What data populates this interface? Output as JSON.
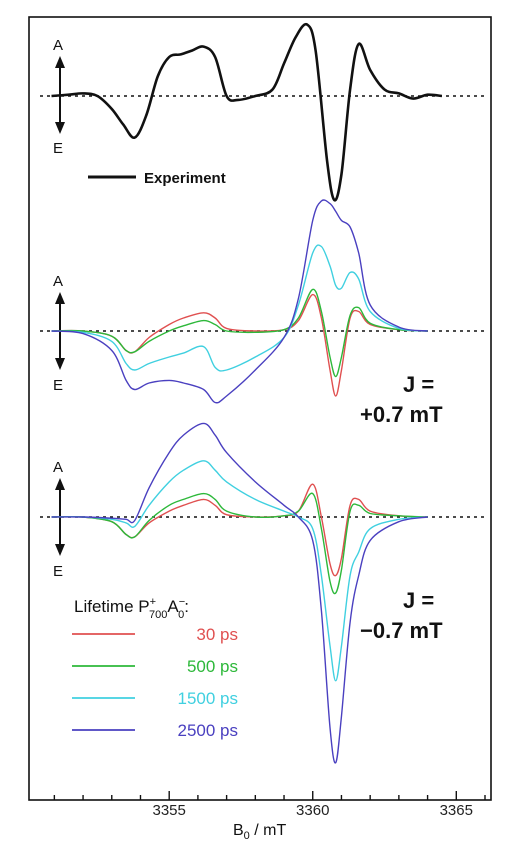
{
  "chart_data": {
    "type": "line",
    "xlabel_main": "B",
    "xlabel_sub": "0",
    "xlabel_unit": " / mT",
    "x_ticks": [
      3355,
      3360,
      3365
    ],
    "xlim": [
      3350.5,
      3366.0
    ],
    "axis_letters": {
      "absorption": "A",
      "emission": "E"
    },
    "colors": {
      "experiment": "#111111",
      "30 ps": "#e05050",
      "500 ps": "#2db83a",
      "1500 ps": "#40d0e0",
      "2500 ps": "#4a40c0"
    },
    "legend": {
      "title_main": "Lifetime P",
      "title_sub1": "700",
      "title_sup1": "+",
      "title_mid": "A",
      "title_sub2": "0",
      "title_sup2": "−",
      "title_end": ":",
      "entries": [
        {
          "label": "30 ps",
          "color": "#e05050"
        },
        {
          "label": "500 ps",
          "color": "#2db83a"
        },
        {
          "label": "1500 ps",
          "color": "#40d0e0"
        },
        {
          "label": "2500 ps",
          "color": "#4a40c0"
        }
      ]
    },
    "panels": [
      {
        "id": "experiment",
        "series": [
          {
            "name": "Experiment",
            "color": "#111111",
            "x": [
              3350.9,
              3351.5,
              3352.0,
              3352.5,
              3353.0,
              3353.4,
              3353.8,
              3354.2,
              3354.6,
              3355.0,
              3355.4,
              3355.8,
              3356.2,
              3356.6,
              3357.0,
              3357.4,
              3358.0,
              3358.6,
              3359.0,
              3359.4,
              3359.8,
              3360.1,
              3360.5,
              3360.75,
              3361.0,
              3361.3,
              3361.6,
              3362.0,
              3362.5,
              3363.0,
              3363.5,
              3364.0,
              3364.5
            ],
            "y": [
              0.0,
              0.01,
              0.02,
              0.0,
              -0.1,
              -0.22,
              -0.32,
              -0.15,
              0.15,
              0.3,
              0.32,
              0.35,
              0.38,
              0.3,
              0.0,
              -0.03,
              0.0,
              0.05,
              0.25,
              0.45,
              0.55,
              0.35,
              -0.5,
              -0.8,
              -0.6,
              0.05,
              0.4,
              0.2,
              0.05,
              0.02,
              -0.02,
              0.01,
              0.0
            ]
          }
        ]
      },
      {
        "id": "plus",
        "series": [
          {
            "name": "30 ps",
            "color": "#e05050",
            "x": [
              3350.9,
              3352.0,
              3353.0,
              3353.5,
              3353.8,
              3354.3,
              3355.0,
              3355.5,
              3356.2,
              3356.6,
              3357.0,
              3358.0,
              3359.0,
              3359.5,
              3360.0,
              3360.3,
              3360.6,
              3360.8,
              3361.0,
              3361.3,
              3361.6,
              3362.0,
              3363.0,
              3364.0
            ],
            "y": [
              0.0,
              0.0,
              -0.04,
              -0.15,
              -0.16,
              -0.05,
              0.05,
              0.1,
              0.14,
              0.1,
              0.02,
              0.0,
              0.01,
              0.08,
              0.28,
              0.1,
              -0.3,
              -0.5,
              -0.3,
              0.1,
              0.15,
              0.05,
              0.01,
              0.0
            ]
          },
          {
            "name": "500 ps",
            "color": "#2db83a",
            "x": [
              3350.9,
              3352.0,
              3353.0,
              3353.5,
              3353.8,
              3354.3,
              3355.0,
              3355.5,
              3356.2,
              3356.6,
              3357.0,
              3358.0,
              3359.0,
              3359.5,
              3360.0,
              3360.3,
              3360.6,
              3360.8,
              3361.0,
              3361.3,
              3361.6,
              3362.0,
              3363.0,
              3364.0
            ],
            "y": [
              0.0,
              0.0,
              -0.04,
              -0.15,
              -0.16,
              -0.08,
              0.0,
              0.04,
              0.08,
              0.05,
              0.0,
              -0.01,
              0.01,
              0.1,
              0.32,
              0.15,
              -0.2,
              -0.35,
              -0.2,
              0.12,
              0.18,
              0.06,
              0.01,
              0.0
            ]
          },
          {
            "name": "1500 ps",
            "color": "#40d0e0",
            "x": [
              3350.9,
              3352.0,
              3353.0,
              3353.5,
              3353.8,
              3354.3,
              3355.0,
              3355.5,
              3356.2,
              3356.6,
              3357.0,
              3358.0,
              3359.0,
              3359.5,
              3360.0,
              3360.3,
              3360.6,
              3360.8,
              3361.0,
              3361.3,
              3361.6,
              3362.0,
              3363.0,
              3364.0
            ],
            "y": [
              0.0,
              -0.01,
              -0.08,
              -0.25,
              -0.3,
              -0.25,
              -0.2,
              -0.17,
              -0.12,
              -0.28,
              -0.3,
              -0.2,
              -0.05,
              0.2,
              0.6,
              0.65,
              0.5,
              0.35,
              0.33,
              0.45,
              0.4,
              0.15,
              0.02,
              0.0
            ]
          },
          {
            "name": "2500 ps",
            "color": "#4a40c0",
            "x": [
              3350.9,
              3352.0,
              3353.0,
              3353.5,
              3353.8,
              3354.3,
              3355.0,
              3355.5,
              3356.2,
              3356.6,
              3357.0,
              3358.0,
              3359.0,
              3359.5,
              3360.0,
              3360.3,
              3360.6,
              3360.8,
              3361.0,
              3361.3,
              3361.6,
              3362.0,
              3363.0,
              3364.0
            ],
            "y": [
              0.0,
              -0.02,
              -0.15,
              -0.38,
              -0.45,
              -0.4,
              -0.38,
              -0.4,
              -0.45,
              -0.55,
              -0.5,
              -0.3,
              -0.05,
              0.25,
              0.85,
              1.0,
              0.98,
              0.92,
              0.85,
              0.8,
              0.6,
              0.2,
              0.03,
              0.0
            ]
          }
        ]
      },
      {
        "id": "minus",
        "series": [
          {
            "name": "30 ps",
            "color": "#e05050",
            "x": [
              3350.9,
              3352.0,
              3353.0,
              3353.5,
              3353.8,
              3354.3,
              3355.0,
              3355.5,
              3356.2,
              3356.6,
              3357.0,
              3358.0,
              3359.0,
              3359.5,
              3360.0,
              3360.3,
              3360.6,
              3360.8,
              3361.0,
              3361.3,
              3361.6,
              3362.0,
              3363.0,
              3364.0
            ],
            "y": [
              0.0,
              0.0,
              -0.04,
              -0.15,
              -0.17,
              -0.05,
              0.05,
              0.1,
              0.15,
              0.1,
              0.02,
              0.0,
              0.01,
              0.05,
              0.28,
              0.0,
              -0.4,
              -0.5,
              -0.35,
              0.1,
              0.15,
              0.05,
              0.01,
              0.0
            ]
          },
          {
            "name": "500 ps",
            "color": "#2db83a",
            "x": [
              3350.9,
              3352.0,
              3353.0,
              3353.5,
              3353.8,
              3354.3,
              3355.0,
              3355.5,
              3356.2,
              3356.6,
              3357.0,
              3358.0,
              3359.0,
              3359.5,
              3360.0,
              3360.3,
              3360.6,
              3360.8,
              3361.0,
              3361.3,
              3361.6,
              3362.0,
              3363.0,
              3364.0
            ],
            "y": [
              0.0,
              0.0,
              -0.04,
              -0.15,
              -0.17,
              -0.03,
              0.1,
              0.15,
              0.2,
              0.15,
              0.05,
              0.0,
              0.01,
              0.05,
              0.2,
              -0.1,
              -0.55,
              -0.65,
              -0.45,
              0.05,
              0.1,
              0.03,
              0.01,
              0.0
            ]
          },
          {
            "name": "1500 ps",
            "color": "#40d0e0",
            "x": [
              3350.9,
              3352.0,
              3353.0,
              3353.5,
              3353.8,
              3354.3,
              3355.0,
              3355.5,
              3356.2,
              3356.6,
              3357.0,
              3358.0,
              3359.0,
              3359.5,
              3360.0,
              3360.3,
              3360.6,
              3360.8,
              3361.0,
              3361.3,
              3361.6,
              3362.0,
              3363.0,
              3364.0
            ],
            "y": [
              0.0,
              0.0,
              -0.02,
              -0.05,
              -0.08,
              0.1,
              0.3,
              0.4,
              0.48,
              0.4,
              0.3,
              0.15,
              0.05,
              0.0,
              -0.1,
              -0.5,
              -1.1,
              -1.4,
              -1.1,
              -0.5,
              -0.3,
              -0.1,
              -0.02,
              0.0
            ]
          },
          {
            "name": "2500 ps",
            "color": "#4a40c0",
            "x": [
              3350.9,
              3352.0,
              3353.0,
              3353.5,
              3353.8,
              3354.3,
              3355.0,
              3355.5,
              3356.2,
              3356.6,
              3357.0,
              3358.0,
              3359.0,
              3359.5,
              3360.0,
              3360.3,
              3360.6,
              3360.8,
              3361.0,
              3361.3,
              3361.6,
              3362.0,
              3363.0,
              3364.0
            ],
            "y": [
              0.0,
              0.0,
              -0.01,
              -0.02,
              -0.03,
              0.25,
              0.55,
              0.7,
              0.8,
              0.7,
              0.55,
              0.3,
              0.1,
              0.0,
              -0.2,
              -0.8,
              -1.8,
              -2.1,
              -1.7,
              -0.9,
              -0.5,
              -0.2,
              -0.04,
              0.0
            ]
          }
        ]
      }
    ],
    "annotations": {
      "experiment_label": "Experiment",
      "j_plus_line1": "J =",
      "j_plus_line2": "+0.7 mT",
      "j_minus_line1": "J =",
      "j_minus_line2": "−0.7 mT"
    }
  }
}
